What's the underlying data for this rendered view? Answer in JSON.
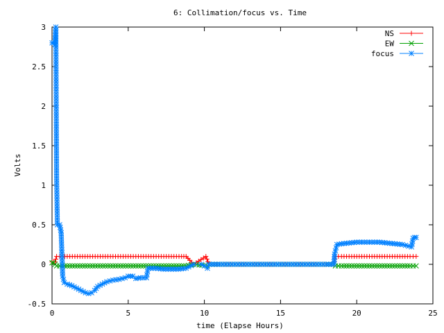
{
  "chart_data": {
    "type": "line",
    "title": "6: Collimation/focus vs. Time",
    "xlabel": "time (Elapse Hours)",
    "ylabel": "Volts",
    "xlim": [
      0,
      25
    ],
    "ylim": [
      -0.5,
      3
    ],
    "x_ticks": [
      0,
      5,
      10,
      15,
      20,
      25
    ],
    "x_tick_labels": [
      "0",
      "5",
      "10",
      "15",
      "20",
      "25"
    ],
    "y_ticks": [
      -0.5,
      0,
      0.5,
      1,
      1.5,
      2,
      2.5,
      3
    ],
    "y_tick_labels": [
      "-0.5",
      "0",
      "0.5",
      "1",
      "1.5",
      "2",
      "2.5",
      "3"
    ],
    "grid": false,
    "legend": "top-right",
    "series": [
      {
        "name": "NS",
        "color": "#ff0000",
        "marker": "plus",
        "points": [
          [
            0,
            0.03
          ],
          [
            0.1,
            0.03
          ],
          [
            0.2,
            0.03
          ],
          [
            0.3,
            0.1
          ],
          [
            0.5,
            0.1
          ],
          [
            1,
            0.1
          ],
          [
            1.5,
            0.1
          ],
          [
            2,
            0.1
          ],
          [
            2.5,
            0.1
          ],
          [
            3,
            0.1
          ],
          [
            3.5,
            0.1
          ],
          [
            4,
            0.1
          ],
          [
            4.5,
            0.1
          ],
          [
            5,
            0.1
          ],
          [
            5.5,
            0.1
          ],
          [
            6,
            0.1
          ],
          [
            6.5,
            0.1
          ],
          [
            7,
            0.1
          ],
          [
            7.5,
            0.1
          ],
          [
            8,
            0.1
          ],
          [
            8.5,
            0.1
          ],
          [
            8.8,
            0.1
          ],
          [
            9.3,
            0.0
          ],
          [
            10.1,
            0.1
          ],
          [
            10.3,
            0.0
          ],
          [
            11,
            0.0
          ],
          [
            12,
            0.0
          ],
          [
            13,
            0.0
          ],
          [
            14,
            0.0
          ],
          [
            15,
            0.0
          ],
          [
            16,
            0.0
          ],
          [
            17,
            0.0
          ],
          [
            18,
            0.0
          ],
          [
            18.5,
            0.0
          ],
          [
            18.6,
            0.1
          ],
          [
            19,
            0.1
          ],
          [
            19.5,
            0.1
          ],
          [
            20,
            0.1
          ],
          [
            20.5,
            0.1
          ],
          [
            21,
            0.1
          ],
          [
            21.5,
            0.1
          ],
          [
            22,
            0.1
          ],
          [
            22.5,
            0.1
          ],
          [
            23,
            0.1
          ],
          [
            23.5,
            0.1
          ],
          [
            23.9,
            0.1
          ]
        ]
      },
      {
        "name": "EW",
        "color": "#00a000",
        "marker": "cross",
        "points": [
          [
            0,
            0.02
          ],
          [
            0.1,
            0.02
          ],
          [
            0.3,
            -0.02
          ],
          [
            0.5,
            -0.02
          ],
          [
            1,
            -0.02
          ],
          [
            1.5,
            -0.02
          ],
          [
            2,
            -0.02
          ],
          [
            2.5,
            -0.02
          ],
          [
            3,
            -0.02
          ],
          [
            3.5,
            -0.02
          ],
          [
            4,
            -0.02
          ],
          [
            4.5,
            -0.02
          ],
          [
            5,
            -0.02
          ],
          [
            5.5,
            -0.02
          ],
          [
            6,
            -0.02
          ],
          [
            6.5,
            -0.02
          ],
          [
            7,
            -0.02
          ],
          [
            7.5,
            -0.02
          ],
          [
            8,
            -0.02
          ],
          [
            8.5,
            -0.02
          ],
          [
            8.8,
            -0.02
          ],
          [
            9.3,
            0.0
          ],
          [
            10.2,
            -0.02
          ],
          [
            10.3,
            0.0
          ],
          [
            11,
            0.0
          ],
          [
            12,
            0.0
          ],
          [
            13,
            0.0
          ],
          [
            14,
            0.0
          ],
          [
            15,
            0.0
          ],
          [
            16,
            0.0
          ],
          [
            17,
            0.0
          ],
          [
            18,
            0.0
          ],
          [
            18.5,
            0.0
          ],
          [
            18.6,
            -0.02
          ],
          [
            19,
            -0.02
          ],
          [
            19.5,
            -0.02
          ],
          [
            20,
            -0.02
          ],
          [
            20.5,
            -0.02
          ],
          [
            21,
            -0.02
          ],
          [
            21.5,
            -0.02
          ],
          [
            22,
            -0.02
          ],
          [
            22.5,
            -0.02
          ],
          [
            23,
            -0.02
          ],
          [
            23.5,
            -0.02
          ],
          [
            23.9,
            -0.02
          ]
        ]
      },
      {
        "name": "focus",
        "color": "#0080ff",
        "marker": "star",
        "points": [
          [
            0.0,
            2.8
          ],
          [
            0.1,
            2.8
          ],
          [
            0.2,
            2.78
          ],
          [
            0.25,
            3.0
          ],
          [
            0.3,
            1.1
          ],
          [
            0.35,
            0.5
          ],
          [
            0.5,
            0.5
          ],
          [
            0.6,
            0.4
          ],
          [
            0.7,
            -0.15
          ],
          [
            0.8,
            -0.23
          ],
          [
            1.0,
            -0.25
          ],
          [
            1.3,
            -0.27
          ],
          [
            1.6,
            -0.3
          ],
          [
            1.9,
            -0.33
          ],
          [
            2.2,
            -0.36
          ],
          [
            2.4,
            -0.37
          ],
          [
            2.6,
            -0.36
          ],
          [
            2.8,
            -0.33
          ],
          [
            3.0,
            -0.28
          ],
          [
            3.3,
            -0.25
          ],
          [
            3.6,
            -0.22
          ],
          [
            4.0,
            -0.2
          ],
          [
            4.4,
            -0.19
          ],
          [
            4.8,
            -0.17
          ],
          [
            5.0,
            -0.15
          ],
          [
            5.3,
            -0.15
          ],
          [
            5.5,
            -0.18
          ],
          [
            5.8,
            -0.17
          ],
          [
            6.2,
            -0.17
          ],
          [
            6.3,
            -0.05
          ],
          [
            6.8,
            -0.05
          ],
          [
            7.3,
            -0.06
          ],
          [
            7.8,
            -0.06
          ],
          [
            8.3,
            -0.06
          ],
          [
            8.8,
            -0.05
          ],
          [
            9.3,
            0.0
          ],
          [
            9.8,
            0.0
          ],
          [
            10.0,
            -0.02
          ],
          [
            10.2,
            -0.05
          ],
          [
            10.3,
            0.0
          ],
          [
            11,
            0.0
          ],
          [
            12,
            0.0
          ],
          [
            13,
            0.0
          ],
          [
            14,
            0.0
          ],
          [
            15,
            0.0
          ],
          [
            16,
            0.0
          ],
          [
            17,
            0.0
          ],
          [
            18,
            0.0
          ],
          [
            18.5,
            0.0
          ],
          [
            18.55,
            0.13
          ],
          [
            18.7,
            0.25
          ],
          [
            19.0,
            0.26
          ],
          [
            19.5,
            0.27
          ],
          [
            20.0,
            0.28
          ],
          [
            20.5,
            0.28
          ],
          [
            21.0,
            0.28
          ],
          [
            21.5,
            0.28
          ],
          [
            22.0,
            0.27
          ],
          [
            22.5,
            0.26
          ],
          [
            23.0,
            0.25
          ],
          [
            23.4,
            0.23
          ],
          [
            23.6,
            0.22
          ],
          [
            23.7,
            0.33
          ],
          [
            23.8,
            0.34
          ],
          [
            23.9,
            0.34
          ]
        ]
      }
    ]
  }
}
